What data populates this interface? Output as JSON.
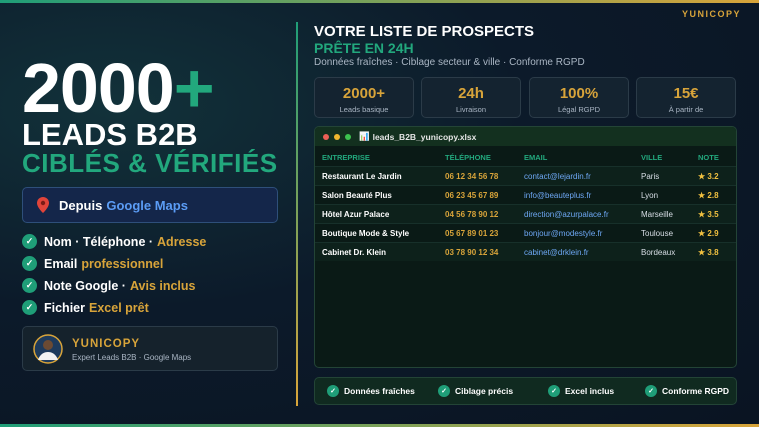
{
  "brand": "YUNICOPY",
  "hero": {
    "number": "2000",
    "suffix": "+",
    "line1": "LEADS B2B",
    "line2": "CIBLÉS & VÉRIFIÉS"
  },
  "source": {
    "prefix": "Depuis",
    "highlight": "Google Maps"
  },
  "features": [
    {
      "text": "Nom · Téléphone ·",
      "highlight": "Adresse"
    },
    {
      "text": "Email",
      "highlight": "professionnel"
    },
    {
      "text": "Note Google ·",
      "highlight": "Avis inclus"
    },
    {
      "text": "Fichier",
      "highlight": "Excel prêt"
    }
  ],
  "profile": {
    "name": "YUNICOPY",
    "subtitle": "Expert Leads B2B · Google Maps"
  },
  "offer": {
    "title": "VOTRE LISTE DE PROSPECTS",
    "subtitle": "PRÊTE EN 24H",
    "description": "Données fraîches · Ciblage secteur & ville · Conforme RGPD"
  },
  "stats": [
    {
      "value": "2000+",
      "label": "Leads basique"
    },
    {
      "value": "24h",
      "label": "Livraison"
    },
    {
      "value": "100%",
      "label": "Légal RGPD"
    },
    {
      "value": "15€",
      "label": "À partir de"
    }
  ],
  "file": {
    "name": "leads_B2B_yunicopy.xlsx"
  },
  "table": {
    "headers": [
      "ENTREPRISE",
      "TÉLÉPHONE",
      "EMAIL",
      "VILLE",
      "NOTE"
    ],
    "rows": [
      [
        "Restaurant Le Jardin",
        "06 12 34 56 78",
        "contact@lejardin.fr",
        "Paris",
        "3.2"
      ],
      [
        "Salon Beauté Plus",
        "06 23 45 67 89",
        "info@beauteplus.fr",
        "Lyon",
        "2.8"
      ],
      [
        "Hôtel Azur Palace",
        "04 56 78 90 12",
        "direction@azurpalace.fr",
        "Marseille",
        "3.5"
      ],
      [
        "Boutique Mode & Style",
        "05 67 89 01 23",
        "bonjour@modestyle.fr",
        "Toulouse",
        "2.9"
      ],
      [
        "Cabinet Dr. Klein",
        "03 78 90 12 34",
        "cabinet@drklein.fr",
        "Bordeaux",
        "3.8"
      ]
    ]
  },
  "badges": [
    "Données fraîches",
    "Ciblage précis",
    "Excel inclus",
    "Conforme RGPD"
  ]
}
